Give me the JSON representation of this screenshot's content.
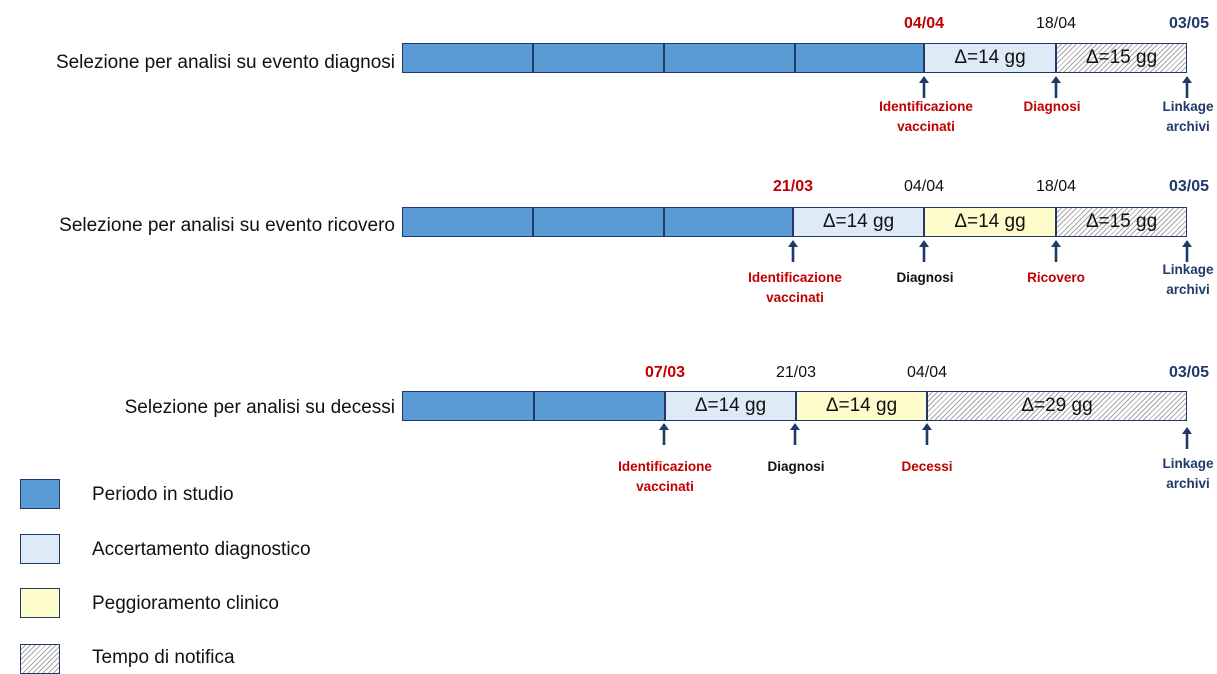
{
  "colors": {
    "periodo_in_studio": "#5b9bd5",
    "accertamento_diagnostico": "#deebf7",
    "peggioramento_clinico": "#fffccb",
    "tempo_di_notifica": "hatched",
    "border": "#1f3a68",
    "red_text": "#c00000",
    "navy_text": "#1f3a68"
  },
  "rows": [
    {
      "title": "Selezione per analisi su evento diagnosi",
      "segments": [
        {
          "kind": "study",
          "label": ""
        },
        {
          "kind": "study",
          "label": ""
        },
        {
          "kind": "study",
          "label": ""
        },
        {
          "kind": "study",
          "label": ""
        },
        {
          "kind": "diag",
          "label": "Δ=14 gg"
        },
        {
          "kind": "notify",
          "label": "Δ=15 gg"
        }
      ],
      "dates": [
        {
          "text": "04/04",
          "style": "red"
        },
        {
          "text": "18/04",
          "style": "plain"
        },
        {
          "text": "03/05",
          "style": "navy"
        }
      ],
      "events": [
        {
          "text": "Identificazione\nvaccinati",
          "style": "red"
        },
        {
          "text": "Diagnosi",
          "style": "red"
        },
        {
          "text": "Linkage\narchivi",
          "style": "navy"
        }
      ]
    },
    {
      "title": "Selezione per analisi su evento ricovero",
      "segments": [
        {
          "kind": "study",
          "label": ""
        },
        {
          "kind": "study",
          "label": ""
        },
        {
          "kind": "study",
          "label": ""
        },
        {
          "kind": "diag",
          "label": "Δ=14 gg"
        },
        {
          "kind": "worse",
          "label": "Δ=14 gg"
        },
        {
          "kind": "notify",
          "label": "Δ=15 gg"
        }
      ],
      "dates": [
        {
          "text": "21/03",
          "style": "red"
        },
        {
          "text": "04/04",
          "style": "plain"
        },
        {
          "text": "18/04",
          "style": "plain"
        },
        {
          "text": "03/05",
          "style": "navy"
        }
      ],
      "events": [
        {
          "text": "Identificazione\nvaccinati",
          "style": "red"
        },
        {
          "text": "Diagnosi",
          "style": "black"
        },
        {
          "text": "Ricovero",
          "style": "red"
        },
        {
          "text": "Linkage\narchivi",
          "style": "navy"
        }
      ]
    },
    {
      "title": "Selezione per analisi su decessi",
      "segments": [
        {
          "kind": "study",
          "label": ""
        },
        {
          "kind": "study",
          "label": ""
        },
        {
          "kind": "diag",
          "label": "Δ=14 gg"
        },
        {
          "kind": "worse",
          "label": "Δ=14 gg"
        },
        {
          "kind": "notify",
          "label": "Δ=29 gg"
        }
      ],
      "dates": [
        {
          "text": "07/03",
          "style": "red"
        },
        {
          "text": "21/03",
          "style": "plain"
        },
        {
          "text": "04/04",
          "style": "plain"
        },
        {
          "text": "03/05",
          "style": "navy"
        }
      ],
      "events": [
        {
          "text": "Identificazione\nvaccinati",
          "style": "red"
        },
        {
          "text": "Diagnosi",
          "style": "black"
        },
        {
          "text": "Decessi",
          "style": "red"
        },
        {
          "text": "Linkage\narchivi",
          "style": "navy"
        }
      ]
    }
  ],
  "legend": [
    {
      "kind": "study",
      "label": "Periodo in studio"
    },
    {
      "kind": "diag",
      "label": "Accertamento diagnostico"
    },
    {
      "kind": "worse",
      "label": "Peggioramento clinico"
    },
    {
      "kind": "notify",
      "label": "Tempo di notifica"
    }
  ]
}
